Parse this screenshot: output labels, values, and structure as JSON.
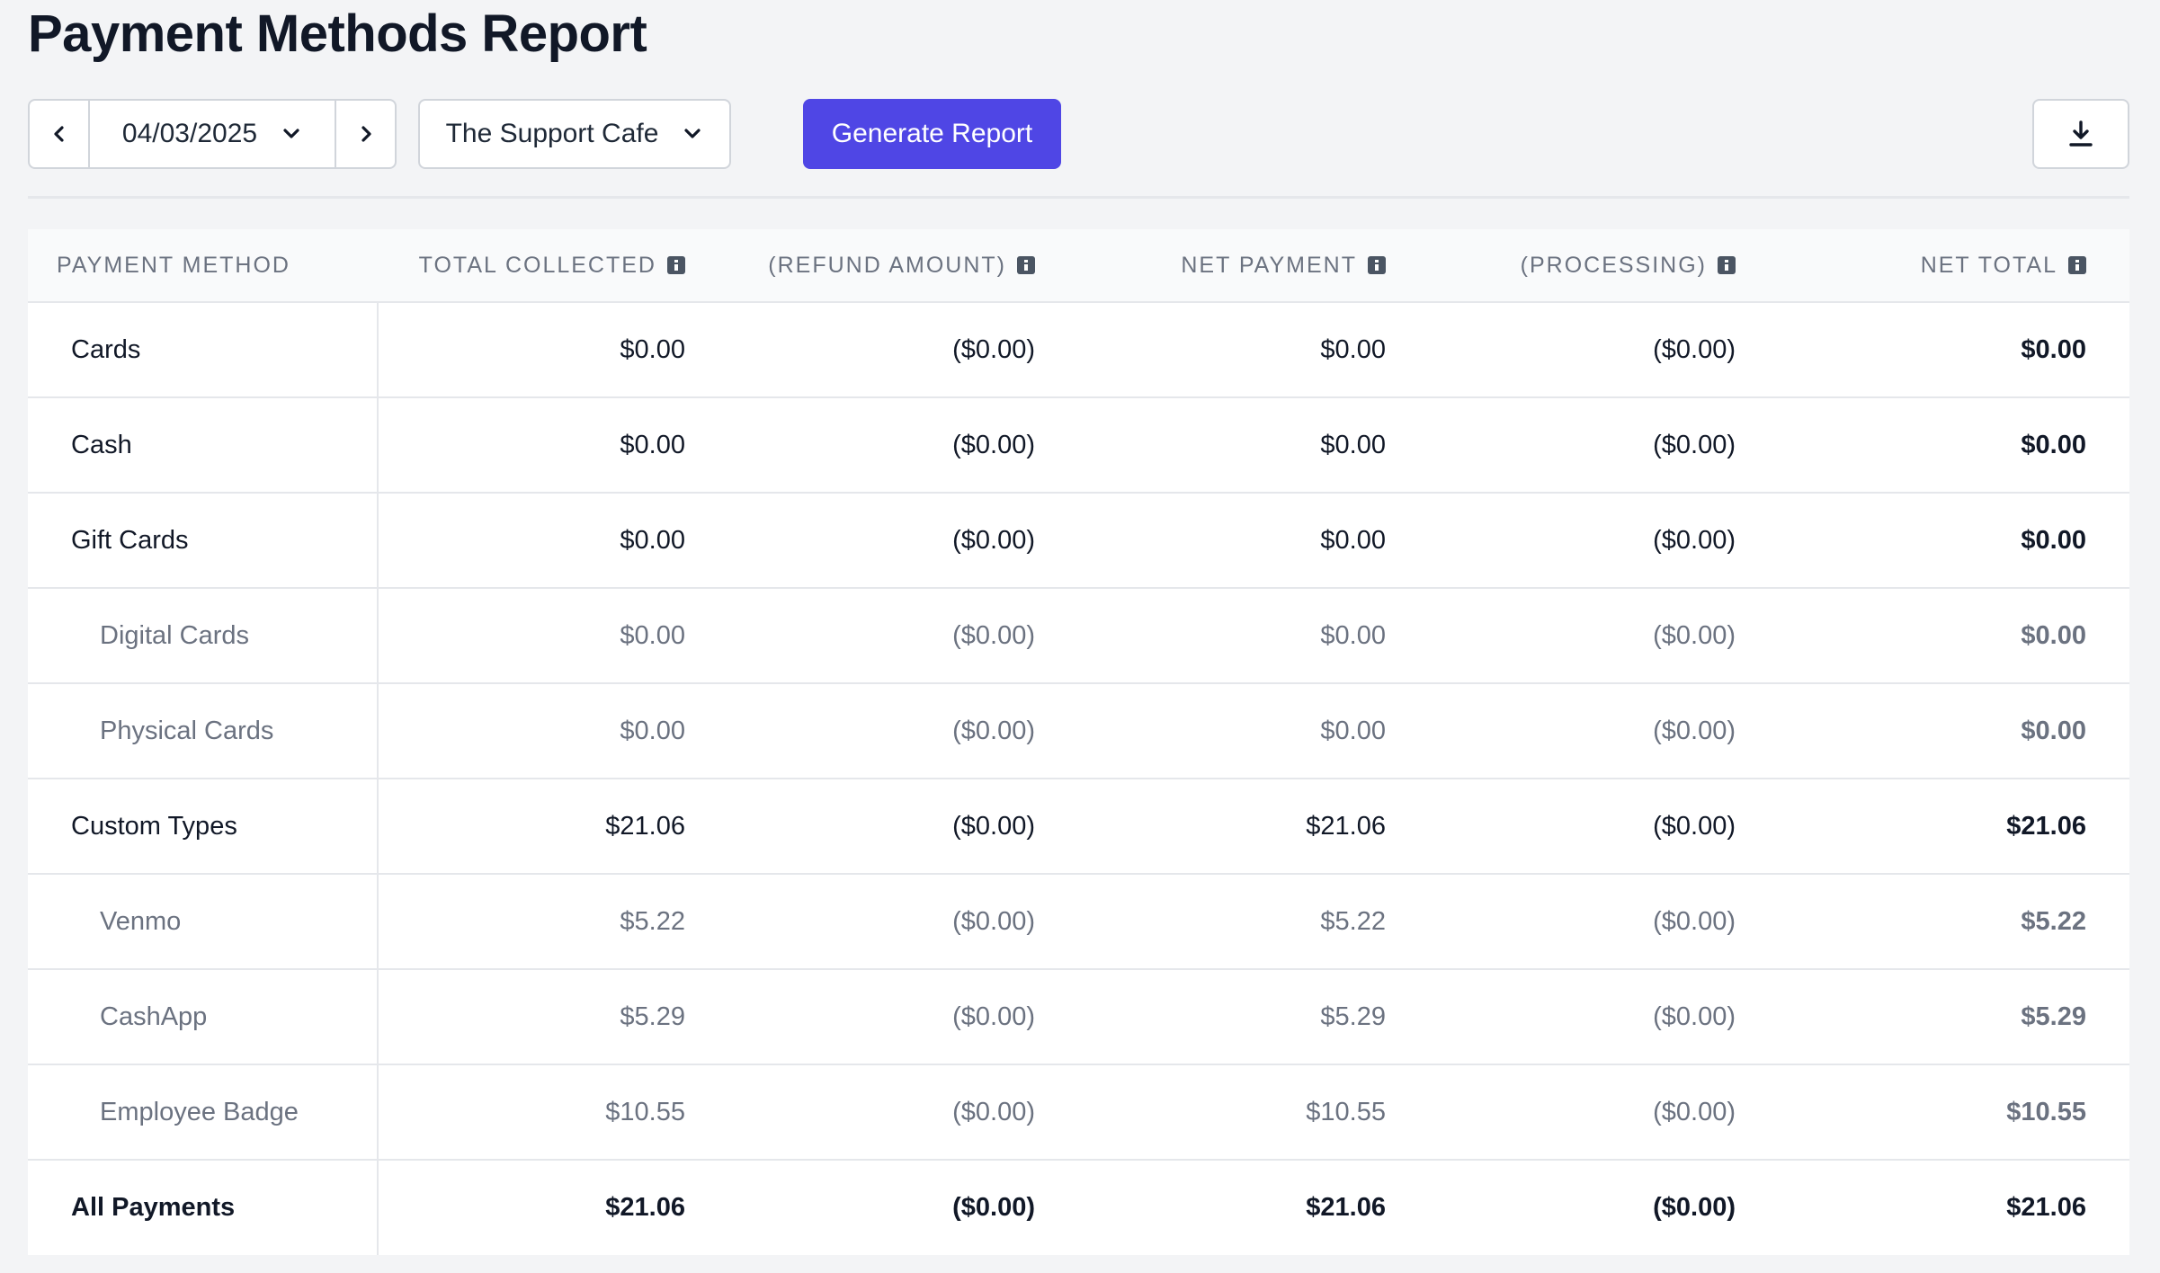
{
  "title": "Payment Methods Report",
  "toolbar": {
    "date": "04/03/2025",
    "location": "The Support Cafe",
    "generate_label": "Generate Report"
  },
  "colors": {
    "accent": "#4f46e5",
    "background": "#f3f4f6",
    "sub_row_text": "#6b7280"
  },
  "icons": {
    "prev": "chevron-left-icon",
    "next": "chevron-right-icon",
    "dropdown": "chevron-down-icon",
    "download": "download-icon",
    "info": "info-icon"
  },
  "table": {
    "headers": [
      "PAYMENT METHOD",
      "TOTAL COLLECTED",
      "(REFUND AMOUNT)",
      "NET PAYMENT",
      "(PROCESSING)",
      "NET TOTAL"
    ],
    "rows": [
      {
        "method": "Cards",
        "collected": "$0.00",
        "refund": "($0.00)",
        "net_payment": "$0.00",
        "processing": "($0.00)",
        "net_total": "$0.00",
        "sub": false
      },
      {
        "method": "Cash",
        "collected": "$0.00",
        "refund": "($0.00)",
        "net_payment": "$0.00",
        "processing": "($0.00)",
        "net_total": "$0.00",
        "sub": false
      },
      {
        "method": "Gift Cards",
        "collected": "$0.00",
        "refund": "($0.00)",
        "net_payment": "$0.00",
        "processing": "($0.00)",
        "net_total": "$0.00",
        "sub": false
      },
      {
        "method": "Digital Cards",
        "collected": "$0.00",
        "refund": "($0.00)",
        "net_payment": "$0.00",
        "processing": "($0.00)",
        "net_total": "$0.00",
        "sub": true
      },
      {
        "method": "Physical Cards",
        "collected": "$0.00",
        "refund": "($0.00)",
        "net_payment": "$0.00",
        "processing": "($0.00)",
        "net_total": "$0.00",
        "sub": true
      },
      {
        "method": "Custom Types",
        "collected": "$21.06",
        "refund": "($0.00)",
        "net_payment": "$21.06",
        "processing": "($0.00)",
        "net_total": "$21.06",
        "sub": false
      },
      {
        "method": "Venmo",
        "collected": "$5.22",
        "refund": "($0.00)",
        "net_payment": "$5.22",
        "processing": "($0.00)",
        "net_total": "$5.22",
        "sub": true
      },
      {
        "method": "CashApp",
        "collected": "$5.29",
        "refund": "($0.00)",
        "net_payment": "$5.29",
        "processing": "($0.00)",
        "net_total": "$5.29",
        "sub": true
      },
      {
        "method": "Employee Badge",
        "collected": "$10.55",
        "refund": "($0.00)",
        "net_payment": "$10.55",
        "processing": "($0.00)",
        "net_total": "$10.55",
        "sub": true
      }
    ],
    "total": {
      "method": "All Payments",
      "collected": "$21.06",
      "refund": "($0.00)",
      "net_payment": "$21.06",
      "processing": "($0.00)",
      "net_total": "$21.06"
    }
  }
}
